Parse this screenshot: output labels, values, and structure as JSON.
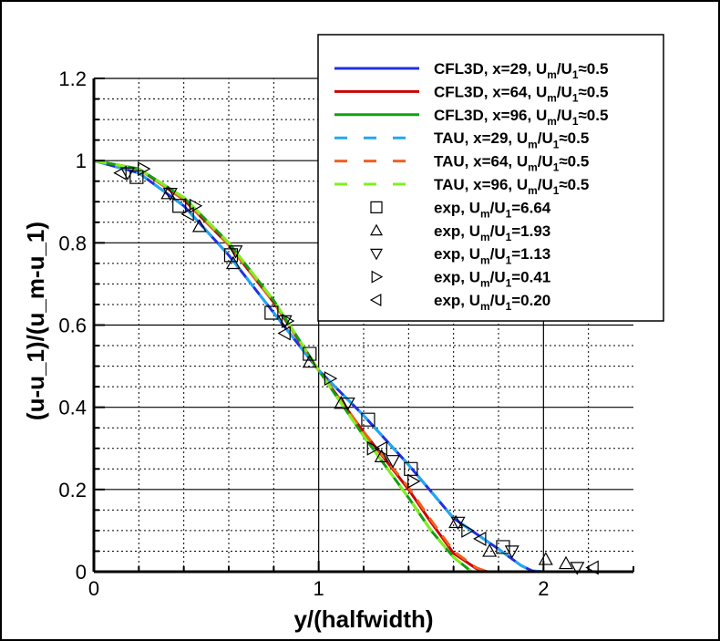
{
  "chart_data": {
    "type": "line",
    "xlabel": "y/(halfwidth)",
    "ylabel": "(u-u_1)/(u_m-u_1)",
    "xlim": [
      0,
      2.4
    ],
    "ylim": [
      0,
      1.2
    ],
    "xticks": [
      0,
      1,
      2
    ],
    "yticks": [
      0,
      0.2,
      0.4,
      0.6,
      0.8,
      1,
      1.2
    ],
    "grid": {
      "major": true,
      "minor_dotted": true,
      "x_minor_step": 0.2,
      "y_minor_step": 0.05
    },
    "legend_placement": "top-right",
    "series": [
      {
        "name": "CFL3D, x=29, U_m/U_1≈0.5",
        "style": "solid",
        "color": "#2030e0",
        "x": [
          0,
          0.2,
          0.4,
          0.6,
          0.8,
          1.0,
          1.2,
          1.4,
          1.6,
          1.8,
          1.9,
          1.95,
          2.0
        ],
        "y": [
          1,
          0.97,
          0.89,
          0.77,
          0.63,
          0.49,
          0.38,
          0.26,
          0.13,
          0.055,
          0.015,
          0.002,
          0
        ]
      },
      {
        "name": "CFL3D, x=64, U_m/U_1≈0.5",
        "style": "solid",
        "color": "#cc0000",
        "x": [
          0,
          0.2,
          0.4,
          0.6,
          0.8,
          1.0,
          1.2,
          1.4,
          1.5,
          1.6,
          1.7,
          1.75
        ],
        "y": [
          1,
          0.98,
          0.905,
          0.795,
          0.655,
          0.49,
          0.34,
          0.2,
          0.12,
          0.045,
          0.008,
          0
        ]
      },
      {
        "name": "CFL3D, x=96, U_m/U_1≈0.5",
        "style": "solid",
        "color": "#10a010",
        "x": [
          0,
          0.2,
          0.4,
          0.6,
          0.8,
          1.0,
          1.2,
          1.4,
          1.5,
          1.6,
          1.68
        ],
        "y": [
          1,
          0.98,
          0.91,
          0.8,
          0.66,
          0.49,
          0.33,
          0.18,
          0.1,
          0.035,
          0
        ]
      },
      {
        "name": "TAU, x=29, U_m/U_1≈0.5",
        "style": "dashed",
        "color": "#20a8f0",
        "x": [
          0,
          0.2,
          0.4,
          0.6,
          0.8,
          1.0,
          1.2,
          1.4,
          1.6,
          1.8,
          1.9,
          1.95,
          2.0
        ],
        "y": [
          1,
          0.97,
          0.89,
          0.77,
          0.63,
          0.49,
          0.38,
          0.26,
          0.13,
          0.055,
          0.015,
          0.002,
          0
        ]
      },
      {
        "name": "TAU, x=64, U_m/U_1≈0.5",
        "style": "dashed",
        "color": "#f06020",
        "x": [
          0,
          0.2,
          0.4,
          0.6,
          0.8,
          1.0,
          1.2,
          1.4,
          1.5,
          1.6,
          1.7,
          1.75
        ],
        "y": [
          1,
          0.98,
          0.905,
          0.795,
          0.655,
          0.49,
          0.34,
          0.205,
          0.125,
          0.05,
          0.01,
          0
        ]
      },
      {
        "name": "TAU, x=96, U_m/U_1≈0.5",
        "style": "dashed",
        "color": "#80f020",
        "x": [
          0,
          0.2,
          0.4,
          0.6,
          0.8,
          1.0,
          1.2,
          1.4,
          1.5,
          1.6,
          1.68
        ],
        "y": [
          1,
          0.98,
          0.91,
          0.8,
          0.66,
          0.49,
          0.33,
          0.18,
          0.1,
          0.035,
          0
        ]
      }
    ],
    "markers": [
      {
        "name": "exp, U_m/U_1=6.64",
        "marker": "square",
        "x": [
          0.19,
          0.38,
          0.61,
          0.79,
          0.96,
          1.22,
          1.41,
          1.82
        ],
        "y": [
          0.96,
          0.89,
          0.77,
          0.63,
          0.53,
          0.37,
          0.25,
          0.06
        ]
      },
      {
        "name": "exp, U_m/U_1=1.93",
        "marker": "triangle-up",
        "x": [
          0.33,
          0.47,
          0.62,
          0.96,
          1.1,
          1.28,
          1.61,
          1.76,
          2.01,
          2.1
        ],
        "y": [
          0.92,
          0.84,
          0.75,
          0.51,
          0.41,
          0.28,
          0.12,
          0.05,
          0.03,
          0.02
        ]
      },
      {
        "name": "exp, U_m/U_1=1.13",
        "marker": "triangle-down",
        "x": [
          0.15,
          0.34,
          0.63,
          0.85,
          1.13,
          1.33,
          1.62,
          1.86,
          2.15
        ],
        "y": [
          0.97,
          0.92,
          0.78,
          0.61,
          0.41,
          0.27,
          0.12,
          0.05,
          0.01
        ]
      },
      {
        "name": "exp, U_m/U_1=0.41",
        "marker": "triangle-right",
        "x": [
          0.22,
          0.45,
          0.86,
          1.05,
          1.24,
          1.42,
          1.66
        ],
        "y": [
          0.98,
          0.89,
          0.61,
          0.47,
          0.3,
          0.22,
          0.1
        ]
      },
      {
        "name": "exp, U_m/U_1=0.20",
        "marker": "triangle-left",
        "x": [
          0.12,
          0.42,
          0.85,
          1.28,
          1.72,
          2.22
        ],
        "y": [
          0.97,
          0.87,
          0.58,
          0.3,
          0.08,
          0.01
        ]
      }
    ]
  }
}
